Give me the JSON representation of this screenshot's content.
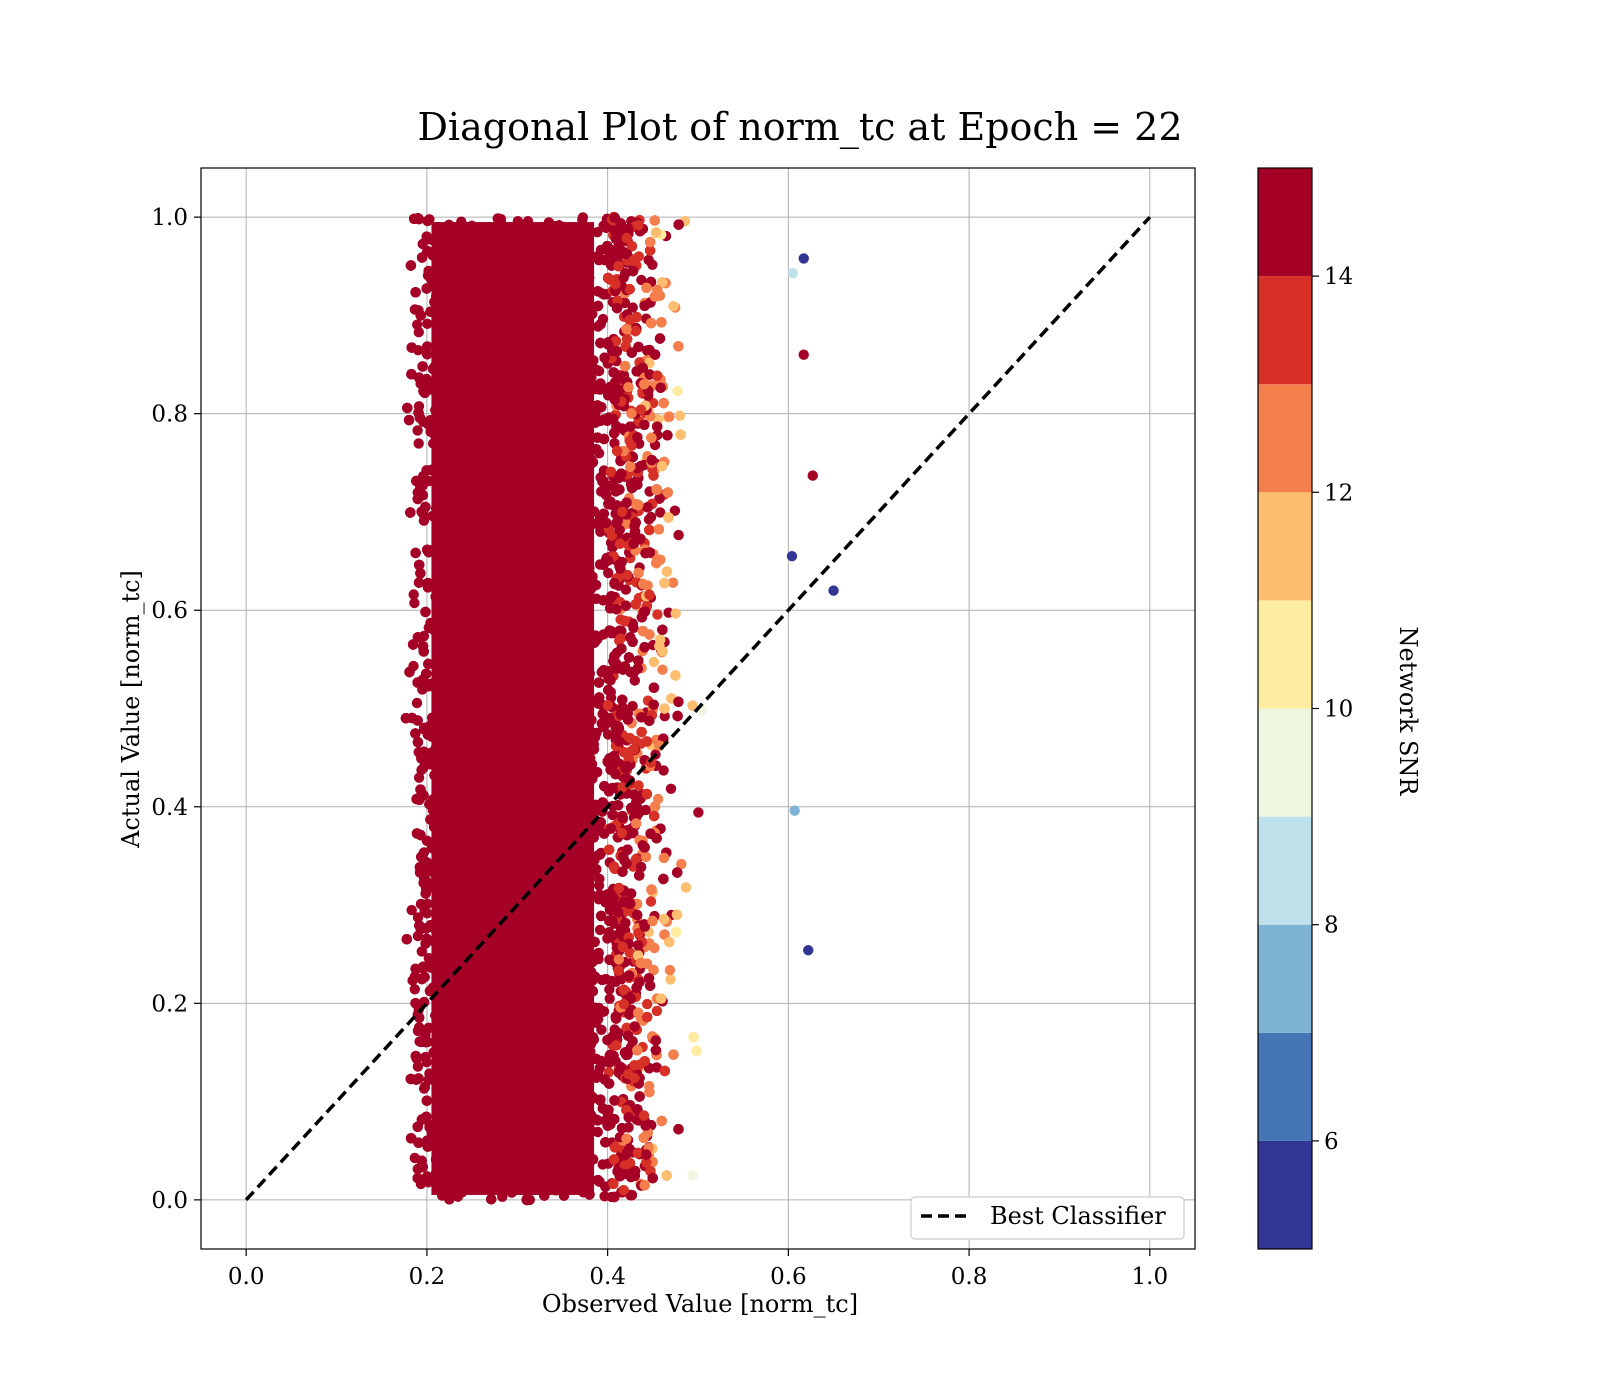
{
  "chart_data": {
    "type": "scatter",
    "title": "Diagonal Plot of norm_tc at Epoch = 22",
    "xlabel": "Observed Value [norm_tc]",
    "ylabel": "Actual Value [norm_tc]",
    "xlim": [
      -0.05,
      1.05
    ],
    "ylim": [
      -0.05,
      1.05
    ],
    "xticks": [
      "0.0",
      "0.2",
      "0.4",
      "0.6",
      "0.8",
      "1.0"
    ],
    "yticks": [
      "0.0",
      "0.2",
      "0.4",
      "0.6",
      "0.8",
      "1.0"
    ],
    "grid": true,
    "series": [
      {
        "name": "Best Classifier",
        "kind": "line",
        "style": "dashed",
        "color": "#000000",
        "x": [
          0.0,
          1.0
        ],
        "y": [
          0.0,
          1.0
        ]
      }
    ],
    "scatter_description": {
      "x_range_dense": [
        0.2,
        0.4
      ],
      "x_range_spread": [
        0.15,
        0.65
      ],
      "y_range": [
        0.0,
        1.0
      ],
      "color_variable": "Network SNR"
    },
    "outliers": [
      {
        "x": 0.65,
        "y": 0.62,
        "snr": 5.5
      },
      {
        "x": 0.622,
        "y": 0.254,
        "snr": 5.5
      },
      {
        "x": 0.617,
        "y": 0.958,
        "snr": 5.5
      },
      {
        "x": 0.604,
        "y": 0.655,
        "snr": 5.5
      },
      {
        "x": 0.627,
        "y": 0.737,
        "snr": 14.5
      },
      {
        "x": 0.617,
        "y": 0.86,
        "snr": 14.5
      },
      {
        "x": 0.607,
        "y": 0.396,
        "snr": 7.5
      },
      {
        "x": 0.605,
        "y": 0.943,
        "snr": 8.5
      }
    ],
    "colorbar": {
      "label": "Network SNR",
      "ticks": [
        "6",
        "8",
        "10",
        "12",
        "14"
      ],
      "min": 5,
      "max": 15,
      "bins": [
        {
          "from": 5,
          "to": 6,
          "color": "#313695"
        },
        {
          "from": 6,
          "to": 7,
          "color": "#4575b4"
        },
        {
          "from": 7,
          "to": 8,
          "color": "#7fb3d5"
        },
        {
          "from": 8,
          "to": 9,
          "color": "#bfe1ec"
        },
        {
          "from": 9,
          "to": 10,
          "color": "#eef6df"
        },
        {
          "from": 10,
          "to": 11,
          "color": "#feeda1"
        },
        {
          "from": 11,
          "to": 12,
          "color": "#fdbe70"
        },
        {
          "from": 12,
          "to": 13,
          "color": "#f57e4d"
        },
        {
          "from": 13,
          "to": 14,
          "color": "#d73027"
        },
        {
          "from": 14,
          "to": 15,
          "color": "#a50026"
        }
      ]
    },
    "legend": {
      "position": "lower-right",
      "entries": [
        "Best Classifier"
      ]
    }
  }
}
